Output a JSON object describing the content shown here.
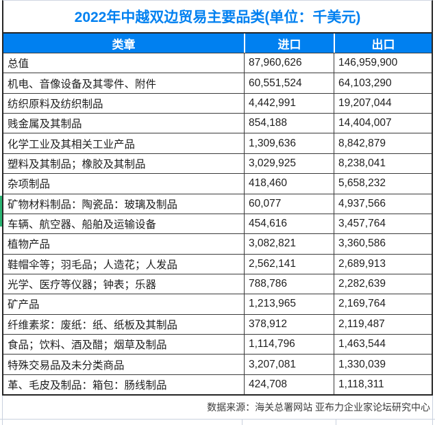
{
  "title": "2022年中越双边贸易主要品类(单位：千美元)",
  "colors": {
    "accent_blue": "#0080F0",
    "border_dark": "#242424",
    "grid_light": "#c9d1de",
    "green_marker": "#2bb673"
  },
  "table": {
    "headers": [
      "类章",
      "进口",
      "出口"
    ],
    "rows": [
      {
        "label": "总值",
        "import": "87,960,626",
        "export": "146,959,900"
      },
      {
        "label": "机电、音像设备及其零件、附件",
        "import": "60,551,524",
        "export": "64,103,290"
      },
      {
        "label": "纺织原料及纺织制品",
        "import": "4,442,991",
        "export": "19,207,044"
      },
      {
        "label": "贱金属及其制品",
        "import": "854,188",
        "export": "14,404,007"
      },
      {
        "label": "化学工业及其相关工业产品",
        "import": "1,309,636",
        "export": "8,842,879"
      },
      {
        "label": "塑料及其制品；橡胶及其制品",
        "import": "3,029,925",
        "export": "8,238,041"
      },
      {
        "label": "杂项制品",
        "import": "418,460",
        "export": "5,658,232"
      },
      {
        "label": "矿物材料制品：陶瓷品：玻璃及制品",
        "import": "60,077",
        "export": "4,937,566"
      },
      {
        "label": "车辆、航空器、船舶及运输设备",
        "import": "454,616",
        "export": "3,457,764"
      },
      {
        "label": "植物产品",
        "import": "3,082,821",
        "export": "3,360,586"
      },
      {
        "label": "鞋帽伞等；羽毛品；人造花；人发品",
        "import": "2,562,141",
        "export": "2,689,913"
      },
      {
        "label": "光学、医疗等仪器；钟表；乐器",
        "import": "788,786",
        "export": "2,282,639"
      },
      {
        "label": "矿产品",
        "import": "1,213,965",
        "export": "2,169,764"
      },
      {
        "label": "纤维素浆：废纸：纸、纸板及其制品",
        "import": "378,912",
        "export": "2,119,487"
      },
      {
        "label": "食品；饮料、酒及醋；烟草及制品",
        "import": "1,114,796",
        "export": "1,463,544"
      },
      {
        "label": "特殊交易品及未分类商品",
        "import": "3,207,081",
        "export": "1,330,039"
      },
      {
        "label": "革、毛皮及制品：箱包：肠线制品",
        "import": "424,708",
        "export": "1,118,311"
      }
    ]
  },
  "footer": {
    "source": "数据来源：海关总署网站 亚布力企业家论坛研究中心"
  },
  "chart_data": {
    "type": "table",
    "title": "2022年中越双边贸易主要品类(单位：千美元)",
    "unit": "千美元",
    "columns": [
      "类章",
      "进口",
      "出口"
    ],
    "categories": [
      "总值",
      "机电、音像设备及其零件、附件",
      "纺织原料及纺织制品",
      "贱金属及其制品",
      "化学工业及其相关工业产品",
      "塑料及其制品；橡胶及其制品",
      "杂项制品",
      "矿物材料制品：陶瓷品：玻璃及制品",
      "车辆、航空器、船舶及运输设备",
      "植物产品",
      "鞋帽伞等；羽毛品；人造花；人发品",
      "光学、医疗等仪器；钟表；乐器",
      "矿产品",
      "纤维素浆：废纸：纸、纸板及其制品",
      "食品；饮料、酒及醋；烟草及制品",
      "特殊交易品及未分类商品",
      "革、毛皮及制品：箱包：肠线制品"
    ],
    "series": [
      {
        "name": "进口",
        "values": [
          87960626,
          60551524,
          4442991,
          854188,
          1309636,
          3029925,
          418460,
          60077,
          454616,
          3082821,
          2562141,
          788786,
          1213965,
          378912,
          1114796,
          3207081,
          424708
        ]
      },
      {
        "name": "出口",
        "values": [
          146959900,
          64103290,
          19207044,
          14404007,
          8842879,
          8238041,
          5658232,
          4937566,
          3457764,
          3360586,
          2689913,
          2282639,
          2169764,
          2119487,
          1463544,
          1330039,
          1118311
        ]
      }
    ],
    "source": "数据来源：海关总署网站 亚布力企业家论坛研究中心"
  }
}
